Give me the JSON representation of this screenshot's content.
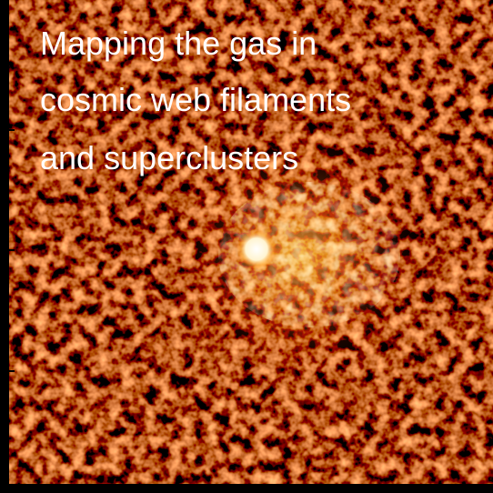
{
  "title_lines": [
    "Mapping the gas in",
    "cosmic web filaments",
    "and superclusters"
  ]
}
